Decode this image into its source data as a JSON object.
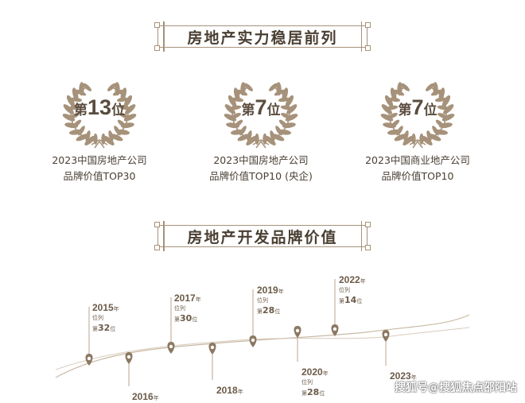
{
  "section1": {
    "title": "房地产实力稳居前列"
  },
  "awards": [
    {
      "prefix": "第",
      "number": "13",
      "suffix": "位",
      "line1": "2023中国房地产公司",
      "line2": "品牌价值TOP30"
    },
    {
      "prefix": "第",
      "number": "7",
      "suffix": "位",
      "line1": "2023中国房地产公司",
      "line2": "品牌价值TOP10 (央企)"
    },
    {
      "prefix": "第",
      "number": "7",
      "suffix": "位",
      "line1": "2023中国商业地产公司",
      "line2": "品牌价值TOP10"
    }
  ],
  "section2": {
    "title": "房地产开发品牌价值"
  },
  "timeline": {
    "year_suffix": "年",
    "rank_label": "位列",
    "rank_prefix": "第",
    "rank_suffix": "位",
    "items": [
      {
        "year": "2015",
        "rank": "32"
      },
      {
        "year": "2016",
        "rank": ""
      },
      {
        "year": "2017",
        "rank": "30"
      },
      {
        "year": "2018",
        "rank": ""
      },
      {
        "year": "2019",
        "rank": "28"
      },
      {
        "year": "2020",
        "rank": "28"
      },
      {
        "year": "2022",
        "rank": "14"
      },
      {
        "year": "2023",
        "rank": ""
      }
    ]
  },
  "watermark": "搜狐号@搜狐焦点邵阳站",
  "colors": {
    "gold": "#a6927a",
    "text": "#5a4c3e"
  }
}
